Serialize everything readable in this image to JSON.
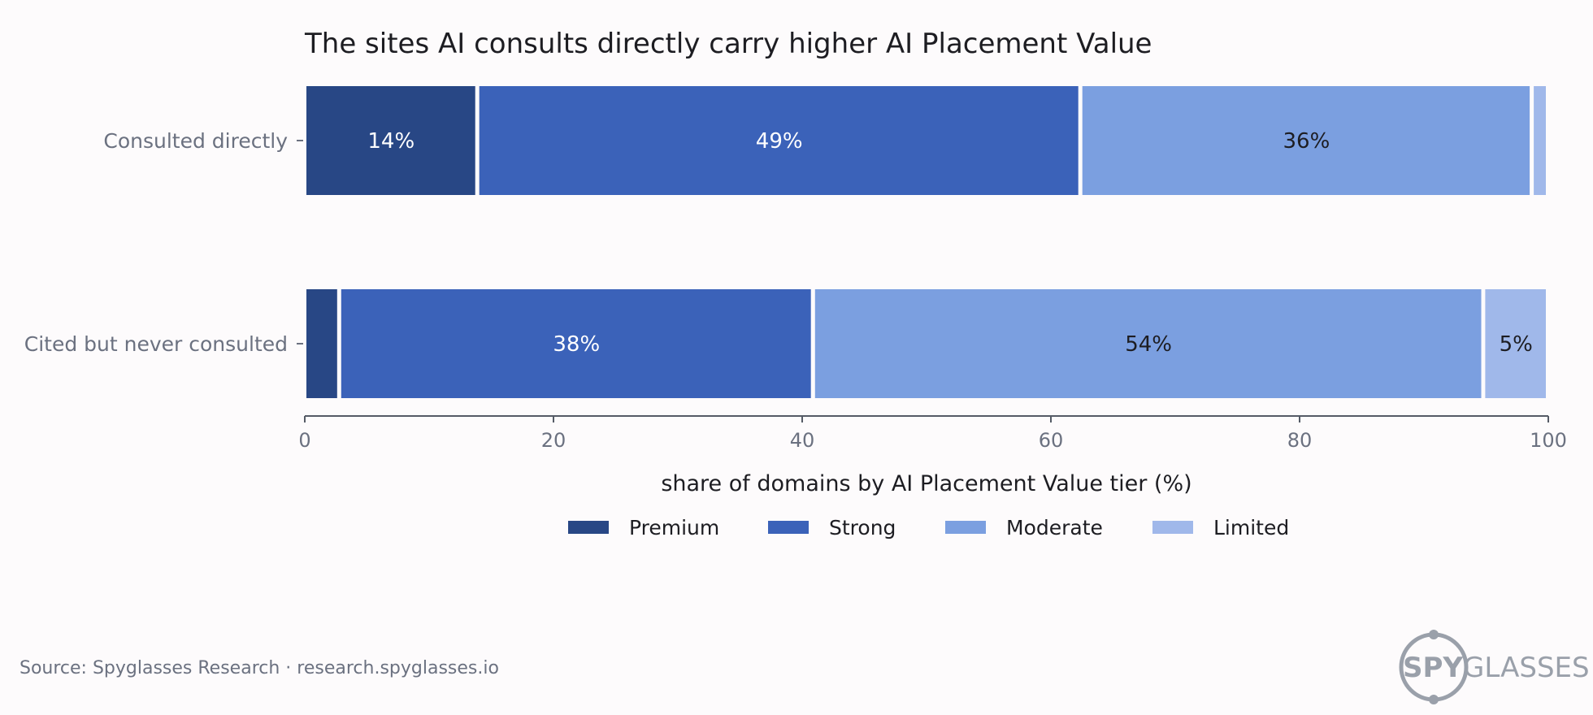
{
  "chart_data": {
    "type": "bar",
    "orientation": "horizontal",
    "stacked": true,
    "title": "The sites AI consults directly carry higher AI Placement Value",
    "xlabel": "share of domains by AI Placement Value tier  (%)",
    "ylabel": "",
    "xlim": [
      0,
      100
    ],
    "xticks": [
      "0",
      "20",
      "40",
      "60",
      "80",
      "100"
    ],
    "categories": [
      "Consulted directly",
      "Cited but never consulted"
    ],
    "series": [
      {
        "name": "Premium",
        "color": "#284785",
        "values": [
          13.9,
          2.8
        ],
        "labels": [
          "14%",
          ""
        ]
      },
      {
        "name": "Strong",
        "color": "#3b62b9",
        "values": [
          48.5,
          38.1
        ],
        "labels": [
          "49%",
          "38%"
        ]
      },
      {
        "name": "Moderate",
        "color": "#7b9fe0",
        "values": [
          36.3,
          53.9
        ],
        "labels": [
          "36%",
          "54%"
        ]
      },
      {
        "name": "Limited",
        "color": "#a0b8ea",
        "values": [
          1.3,
          5.2
        ],
        "labels": [
          "",
          "5%"
        ]
      }
    ],
    "label_colors": [
      "#ffffff",
      "#ffffff",
      "#1d1d22",
      "#1d1d22"
    ],
    "legend_position": "bottom-center",
    "grid": false
  },
  "footer": {
    "source": "Source: Spyglasses Research · research.spyglasses.io",
    "logo_bold": "SPY",
    "logo_light": "GLASSES"
  }
}
